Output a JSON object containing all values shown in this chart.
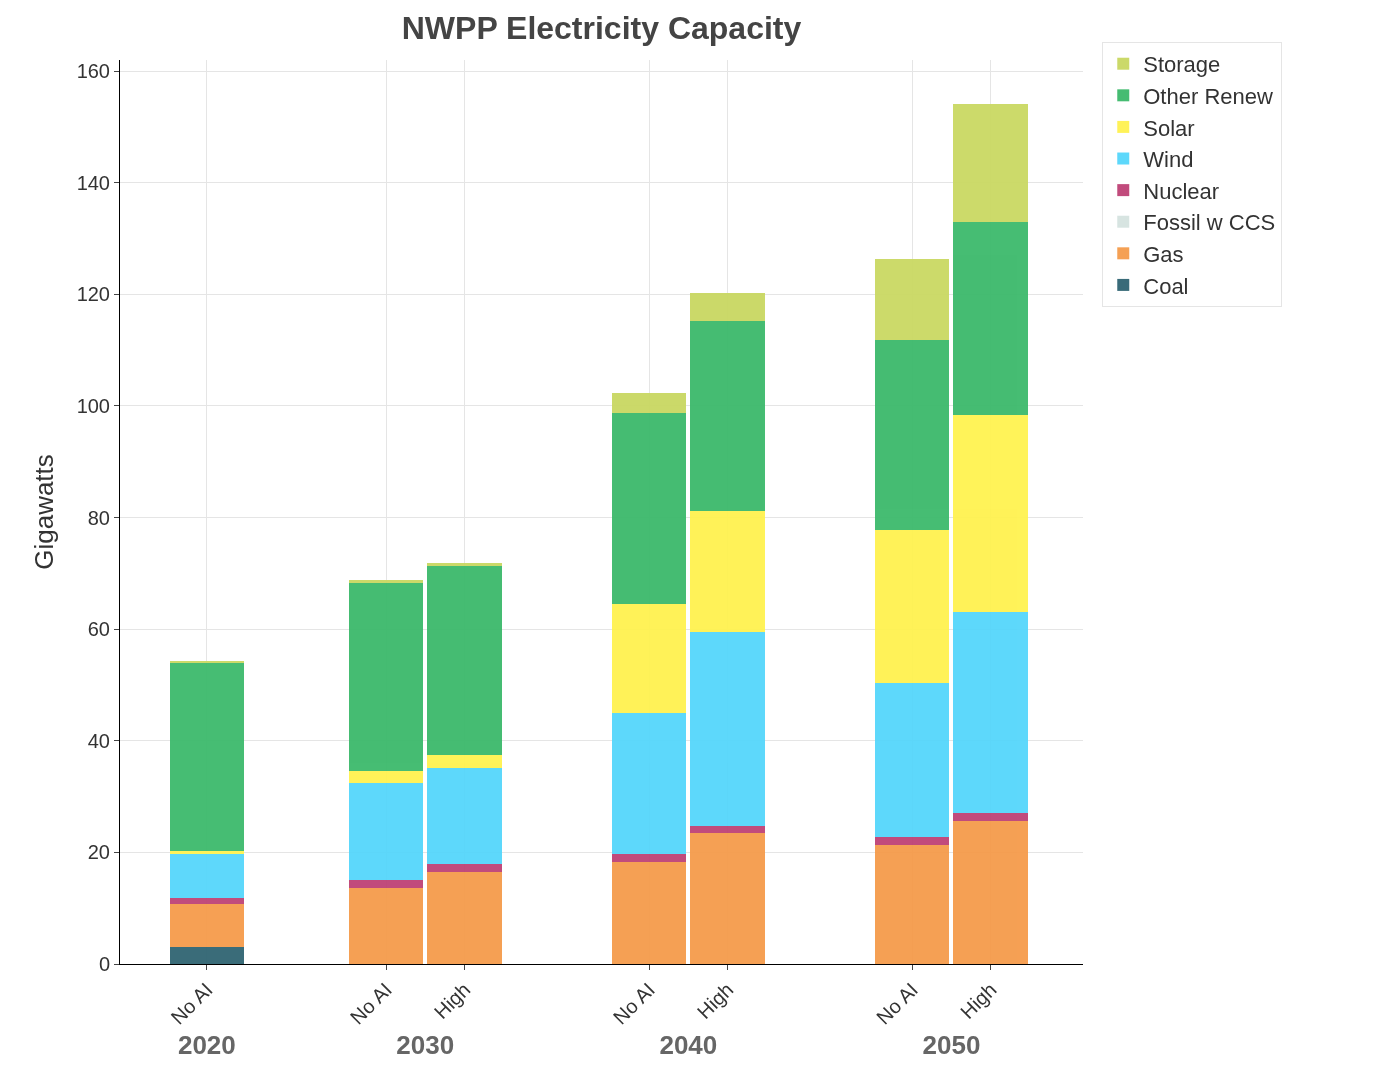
{
  "chart_data": [
    {
      "type": "bar",
      "ylabel": "Gigawatts",
      "xlabel": "2020",
      "stacked": true,
      "categories": [
        "No AI"
      ],
      "series": [
        {
          "color": "#2f6472",
          "values": [
            3.0
          ]
        },
        {
          "color": "#f59b4b",
          "values": [
            7.7
          ]
        },
        {
          "color": "#d5e3e0",
          "values": [
            0
          ]
        },
        {
          "color": "#be4275",
          "values": [
            1.1
          ]
        },
        {
          "color": "#55d6fb",
          "values": [
            8.0
          ]
        },
        {
          "color": "#fff250",
          "values": [
            0.4
          ]
        },
        {
          "color": "#3cb96b",
          "values": [
            33.8
          ]
        },
        {
          "color": "#c9d862",
          "values": [
            0.3
          ]
        }
      ],
      "ylim": [
        0,
        162
      ],
      "yticks": [
        0,
        20,
        40,
        60,
        80,
        100,
        120,
        140,
        160
      ],
      "grid": true
    },
    {
      "type": "bar",
      "xlabel": "2030",
      "stacked": true,
      "categories": [
        "No AI",
        "High"
      ],
      "series": [
        {
          "color": "#2f6472",
          "values": [
            0,
            0
          ]
        },
        {
          "color": "#f59b4b",
          "values": [
            13.6,
            16.4
          ]
        },
        {
          "color": "#d5e3e0",
          "values": [
            0,
            0
          ]
        },
        {
          "color": "#be4275",
          "values": [
            1.4,
            1.5
          ]
        },
        {
          "color": "#55d6fb",
          "values": [
            17.4,
            17.3
          ]
        },
        {
          "color": "#fff250",
          "values": [
            2.1,
            2.2
          ]
        },
        {
          "color": "#3cb96b",
          "values": [
            33.8,
            33.9
          ]
        },
        {
          "color": "#c9d862",
          "values": [
            0.5,
            0.6
          ]
        }
      ],
      "ylim": [
        0,
        162
      ],
      "yticks": [
        0,
        20,
        40,
        60,
        80,
        100,
        120,
        140,
        160
      ],
      "grid": true,
      "tick_labels": "x"
    },
    {
      "type": "bar",
      "title": "NWPP Electricity Capacity",
      "xlabel": "2040",
      "stacked": true,
      "categories": [
        "No AI",
        "High"
      ],
      "series": [
        {
          "color": "#2f6472",
          "values": [
            0,
            0
          ]
        },
        {
          "color": "#f59b4b",
          "values": [
            18.2,
            23.4
          ]
        },
        {
          "color": "#d5e3e0",
          "values": [
            0,
            0
          ]
        },
        {
          "color": "#be4275",
          "values": [
            1.5,
            1.4
          ]
        },
        {
          "color": "#55d6fb",
          "values": [
            25.3,
            34.7
          ]
        },
        {
          "color": "#fff250",
          "values": [
            19.5,
            21.7
          ]
        },
        {
          "color": "#3cb96b",
          "values": [
            34.2,
            34.1
          ]
        },
        {
          "color": "#c9d862",
          "values": [
            3.7,
            5.0
          ]
        }
      ],
      "ylim": [
        0,
        162
      ],
      "yticks": [
        0,
        20,
        40,
        60,
        80,
        100,
        120,
        140,
        160
      ],
      "grid": true,
      "tick_labels": "x"
    },
    {
      "type": "bar",
      "xlabel": "2050",
      "stacked": true,
      "categories": [
        "No AI",
        "High"
      ],
      "series": [
        {
          "name": "Coal",
          "color": "#2f6472",
          "values": [
            0,
            0
          ]
        },
        {
          "name": "Gas",
          "color": "#f59b4b",
          "values": [
            21.3,
            25.6
          ]
        },
        {
          "name": "Fossil w CCS",
          "color": "#d5e3e0",
          "values": [
            0,
            0
          ]
        },
        {
          "name": "Nuclear",
          "color": "#be4275",
          "values": [
            1.4,
            1.4
          ]
        },
        {
          "name": "Wind",
          "color": "#55d6fb",
          "values": [
            27.7,
            36.1
          ]
        },
        {
          "name": "Solar",
          "color": "#fff250",
          "values": [
            27.4,
            35.2
          ]
        },
        {
          "name": "Other Renew",
          "color": "#3cb96b",
          "values": [
            34.1,
            34.7
          ]
        },
        {
          "name": "Storage",
          "color": "#c9d862",
          "values": [
            14.5,
            21.1
          ]
        }
      ],
      "ylim": [
        0,
        162
      ],
      "yticks": [
        0,
        20,
        40,
        60,
        80,
        100,
        120,
        140,
        160
      ],
      "grid": true,
      "tick_labels": "x",
      "legend": "top right"
    }
  ]
}
